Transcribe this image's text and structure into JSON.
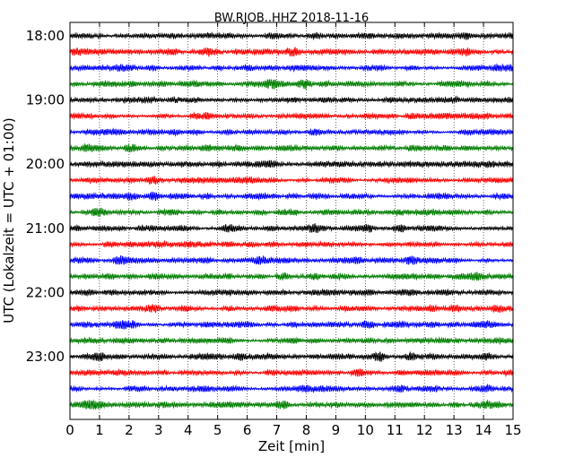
{
  "chart_data": {
    "type": "line",
    "title": "BW.RJOB..HHZ 2018-11-16",
    "xlabel": "Zeit  [min]",
    "ylabel": "UTC (Lokalzeit = UTC + 01:00)",
    "xlim": [
      0,
      15
    ],
    "x_ticks": [
      "0",
      "1",
      "2",
      "3",
      "4",
      "5",
      "6",
      "7",
      "8",
      "9",
      "10",
      "11",
      "12",
      "13",
      "14",
      "15"
    ],
    "y_tick_labels": [
      "18:00",
      "19:00",
      "20:00",
      "21:00",
      "22:00",
      "23:00"
    ],
    "trace_start_times": [
      "18:00",
      "18:15",
      "18:30",
      "18:45",
      "19:00",
      "19:15",
      "19:30",
      "19:45",
      "20:00",
      "20:15",
      "20:30",
      "20:45",
      "21:00",
      "21:15",
      "21:30",
      "21:45",
      "22:00",
      "22:15",
      "22:30",
      "22:45",
      "23:00",
      "23:15",
      "23:30",
      "23:45"
    ],
    "trace_colors": [
      "#000000",
      "#ff0000",
      "#0000ff",
      "#007f00"
    ],
    "x_grid": "dotted vertical lines at every minute"
  }
}
